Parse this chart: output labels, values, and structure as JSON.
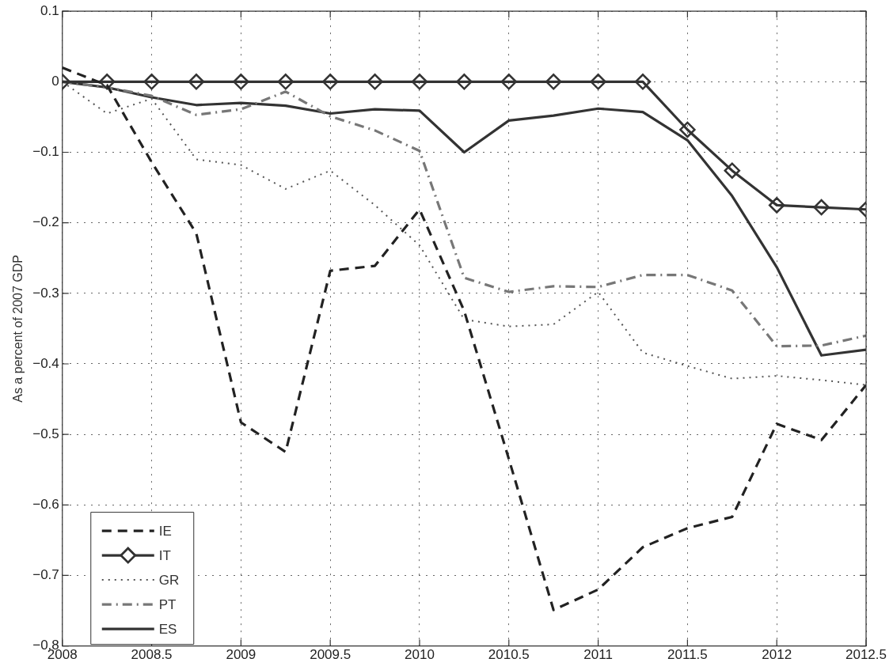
{
  "chart_data": {
    "type": "line",
    "ylabel": "As a percent of 2007 GDP",
    "x": [
      2008,
      2008.25,
      2008.5,
      2008.75,
      2009,
      2009.25,
      2009.5,
      2009.75,
      2010,
      2010.25,
      2010.5,
      2010.75,
      2011,
      2011.25,
      2011.5,
      2011.75,
      2012,
      2012.25,
      2012.5
    ],
    "xlim": [
      2008,
      2012.5
    ],
    "xticks": [
      2008,
      2008.5,
      2009,
      2009.5,
      2010,
      2010.5,
      2011,
      2011.5,
      2012,
      2012.5
    ],
    "ylim": [
      -0.8,
      0.1
    ],
    "yticks": [
      -0.8,
      -0.7,
      -0.6,
      -0.5,
      -0.4,
      -0.3,
      -0.2,
      -0.1,
      0,
      0.1
    ],
    "grid": true,
    "legend": "bottom left",
    "series": [
      {
        "name": "IE",
        "color": "#222222",
        "line_style": "dashed",
        "marker": "none",
        "values": [
          0.02,
          -0.005,
          -0.114,
          -0.215,
          -0.483,
          -0.525,
          -0.268,
          -0.261,
          -0.181,
          -0.325,
          -0.535,
          -0.749,
          -0.72,
          -0.66,
          -0.633,
          -0.617,
          -0.485,
          -0.508,
          -0.43
        ]
      },
      {
        "name": "IT",
        "color": "#333333",
        "line_style": "solid",
        "marker": "diamond",
        "values": [
          0,
          0,
          0,
          0,
          0,
          0,
          0,
          0,
          0,
          0,
          0,
          0,
          0,
          0,
          -0.068,
          -0.126,
          -0.175,
          -0.178,
          -0.181
        ]
      },
      {
        "name": "GR",
        "color": "#555555",
        "line_style": "dotted",
        "marker": "none",
        "values": [
          0,
          -0.045,
          -0.024,
          -0.11,
          -0.118,
          -0.152,
          -0.126,
          -0.175,
          -0.232,
          -0.337,
          -0.347,
          -0.344,
          -0.298,
          -0.384,
          -0.403,
          -0.421,
          -0.417,
          -0.423,
          -0.43
        ]
      },
      {
        "name": "PT",
        "color": "#777777",
        "line_style": "dashdot",
        "marker": "none",
        "values": [
          0,
          -0.008,
          -0.02,
          -0.047,
          -0.039,
          -0.014,
          -0.049,
          -0.069,
          -0.098,
          -0.278,
          -0.298,
          -0.29,
          -0.291,
          -0.274,
          -0.274,
          -0.296,
          -0.375,
          -0.374,
          -0.36
        ]
      },
      {
        "name": "ES",
        "color": "#333333",
        "line_style": "solid",
        "marker": "none",
        "values": [
          0,
          -0.008,
          -0.022,
          -0.033,
          -0.03,
          -0.034,
          -0.045,
          -0.039,
          -0.041,
          -0.1,
          -0.055,
          -0.048,
          -0.038,
          -0.043,
          -0.083,
          -0.162,
          -0.263,
          -0.388,
          -0.38
        ]
      }
    ]
  }
}
